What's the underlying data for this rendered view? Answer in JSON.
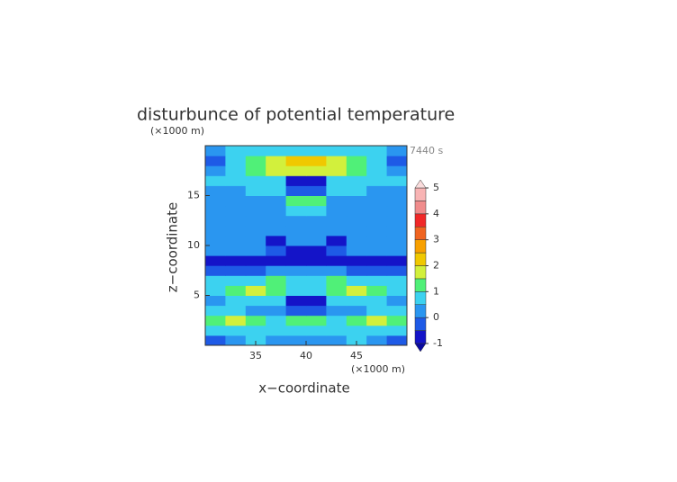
{
  "chart_data": {
    "type": "contour",
    "title": "disturbunce of potential temperature",
    "y_unit": "(×1000 m)",
    "x_unit": "(×1000 m)",
    "time_label": "7440 s",
    "xlabel": "x−coordinate",
    "ylabel": "z−coordinate",
    "xlim": [
      30,
      50
    ],
    "ylim": [
      0,
      20
    ],
    "xticks": [
      35,
      40,
      45
    ],
    "yticks": [
      5,
      10,
      15
    ],
    "x": [
      31,
      33,
      35,
      37,
      39,
      41,
      43,
      45,
      47,
      49
    ],
    "y": [
      0.5,
      1.5,
      2.5,
      3.5,
      4.5,
      5.5,
      6.5,
      7.5,
      8.5,
      9.5,
      10.5,
      11.5,
      12.5,
      13.5,
      14.5,
      15.5,
      16.5,
      17.5,
      18.5,
      19.5
    ],
    "z": [
      [
        -0.2,
        0.3,
        0.6,
        0.3,
        0.3,
        0.3,
        0.3,
        0.6,
        0.3,
        -0.2
      ],
      [
        0.6,
        0.7,
        0.8,
        0.7,
        0.7,
        0.7,
        0.7,
        0.8,
        0.7,
        0.6
      ],
      [
        1.2,
        1.6,
        1.2,
        0.8,
        1.2,
        1.2,
        0.8,
        1.2,
        1.6,
        1.2
      ],
      [
        0.6,
        0.7,
        0.4,
        0.3,
        -0.3,
        -0.3,
        0.3,
        0.4,
        0.7,
        0.6
      ],
      [
        0.3,
        0.6,
        0.7,
        0.8,
        -0.6,
        -0.6,
        0.8,
        0.7,
        0.6,
        0.3
      ],
      [
        0.8,
        1.2,
        1.6,
        1.2,
        0.8,
        0.8,
        1.2,
        1.6,
        1.2,
        0.8
      ],
      [
        0.6,
        0.8,
        0.7,
        1.2,
        0.8,
        0.8,
        1.2,
        0.7,
        0.8,
        0.6
      ],
      [
        -0.2,
        -0.2,
        -0.2,
        0.3,
        0.3,
        0.3,
        0.3,
        -0.2,
        -0.2,
        -0.2
      ],
      [
        -0.6,
        -0.6,
        -0.6,
        -0.6,
        -0.6,
        -0.6,
        -0.6,
        -0.6,
        -0.6,
        -0.6
      ],
      [
        0.2,
        0.2,
        0.2,
        -0.3,
        -0.6,
        -0.6,
        -0.3,
        0.2,
        0.2,
        0.2
      ],
      [
        0.3,
        0.3,
        0.3,
        -0.6,
        0.3,
        0.3,
        -0.6,
        0.3,
        0.3,
        0.3
      ],
      [
        0.3,
        0.3,
        0.3,
        0.3,
        0.3,
        0.3,
        0.3,
        0.3,
        0.3,
        0.3
      ],
      [
        0.3,
        0.3,
        0.3,
        0.3,
        0.3,
        0.3,
        0.3,
        0.3,
        0.3,
        0.3
      ],
      [
        0.3,
        0.3,
        0.3,
        0.3,
        0.8,
        0.8,
        0.3,
        0.3,
        0.3,
        0.3
      ],
      [
        0.3,
        0.3,
        0.3,
        0.3,
        1.2,
        1.2,
        0.3,
        0.3,
        0.3,
        0.3
      ],
      [
        0.3,
        0.3,
        0.6,
        0.7,
        -0.3,
        -0.3,
        0.7,
        0.6,
        0.3,
        0.3
      ],
      [
        0.8,
        0.6,
        0.8,
        0.7,
        -0.6,
        -0.6,
        0.7,
        0.8,
        0.6,
        0.8
      ],
      [
        0.3,
        0.7,
        1.2,
        1.6,
        1.8,
        1.8,
        1.6,
        1.2,
        0.7,
        0.3
      ],
      [
        -0.3,
        0.7,
        1.2,
        1.8,
        2.3,
        2.3,
        1.8,
        1.2,
        0.7,
        -0.3
      ],
      [
        0.3,
        0.6,
        0.8,
        0.8,
        0.8,
        0.8,
        0.8,
        0.8,
        0.6,
        0.3
      ]
    ],
    "levels": [
      -1,
      -0.5,
      0,
      0.5,
      1,
      1.5,
      2,
      2.5,
      3,
      3.5,
      4,
      4.5,
      5
    ],
    "colors": [
      "#1414c8",
      "#1e5ae6",
      "#2a96f0",
      "#3cd2f0",
      "#50f078",
      "#d2f03c",
      "#f0c800",
      "#f8a000",
      "#f06420",
      "#f02828",
      "#f08c8c",
      "#f8b4b4"
    ],
    "under_color": "#0a0aa0",
    "over_color": "#fadcdc",
    "cbticks": [
      -1,
      0,
      1,
      2,
      3,
      4,
      5
    ]
  }
}
